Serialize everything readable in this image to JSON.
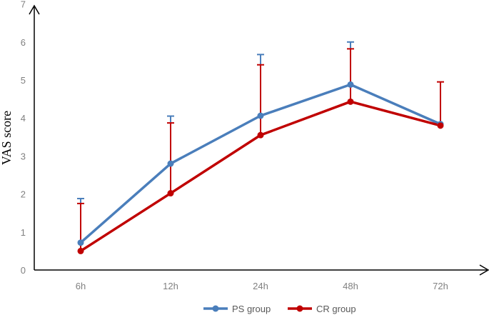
{
  "chart_data": {
    "type": "line",
    "ylabel": "VAS score",
    "xlabel": "",
    "title": "",
    "categories": [
      "6h",
      "12h",
      "24h",
      "48h",
      "72h"
    ],
    "yticks": [
      "0",
      "1",
      "2",
      "3",
      "4",
      "5",
      "6",
      "7"
    ],
    "ylim": [
      0,
      7
    ],
    "grid": false,
    "legend_position": "bottom",
    "error_bars": "upper only",
    "series": [
      {
        "name": "PS group",
        "color": "#4a7ebb",
        "values": [
          0.72,
          2.8,
          4.06,
          4.88,
          3.84
        ],
        "error_upper": [
          1.88,
          4.05,
          5.67,
          6.0,
          3.84
        ]
      },
      {
        "name": "CR group",
        "color": "#c00000",
        "values": [
          0.5,
          2.02,
          3.55,
          4.43,
          3.8
        ],
        "error_upper": [
          1.75,
          3.87,
          5.4,
          5.82,
          4.95
        ]
      }
    ]
  }
}
